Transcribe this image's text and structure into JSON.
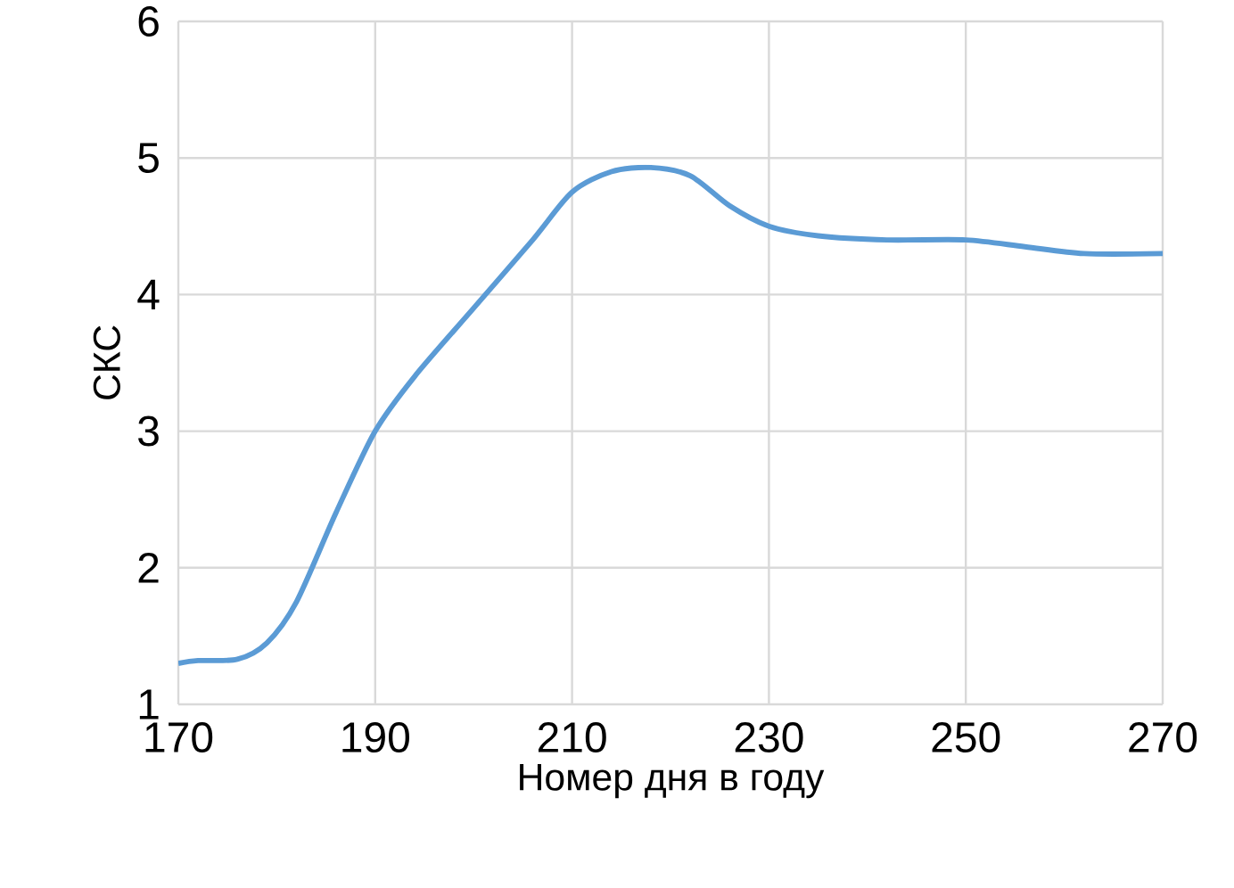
{
  "chart_data": {
    "type": "line",
    "xlabel": "Номер дня в году",
    "ylabel": "СКС",
    "xlim": [
      170,
      270
    ],
    "ylim": [
      1,
      6
    ],
    "xticks": [
      170,
      190,
      210,
      230,
      250,
      270
    ],
    "yticks": [
      1,
      2,
      3,
      4,
      5,
      6
    ],
    "grid": true,
    "series": [
      {
        "color": "#5b9bd5",
        "x": [
          170,
          172,
          176,
          179,
          182,
          186,
          190,
          194,
          200,
          206,
          210,
          214,
          218,
          222,
          226,
          230,
          235,
          242,
          250,
          256,
          262,
          270
        ],
        "values": [
          1.3,
          1.32,
          1.33,
          1.45,
          1.75,
          2.4,
          3.0,
          3.4,
          3.9,
          4.4,
          4.75,
          4.9,
          4.93,
          4.87,
          4.65,
          4.5,
          4.43,
          4.4,
          4.4,
          4.35,
          4.3,
          4.3
        ]
      }
    ]
  }
}
